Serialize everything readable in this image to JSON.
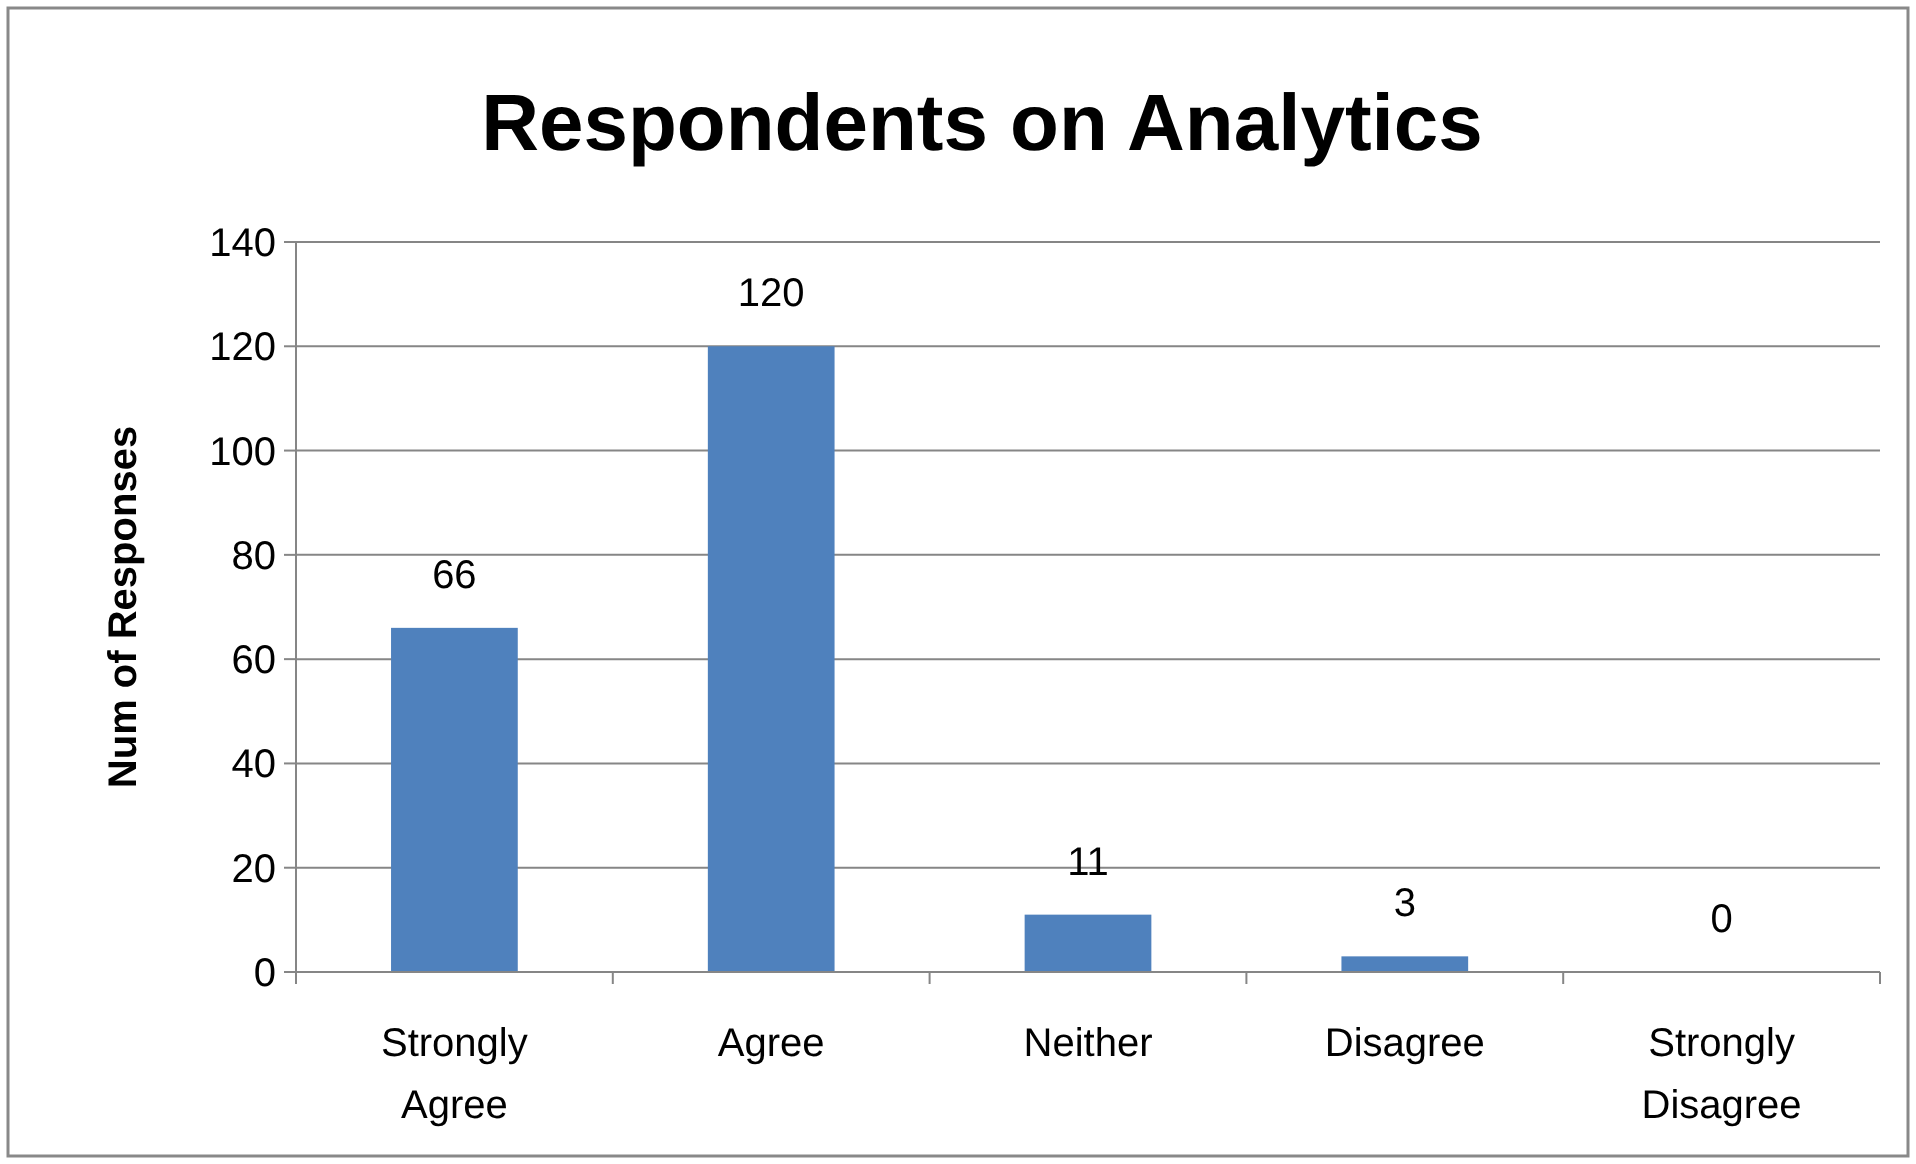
{
  "chart_data": {
    "type": "bar",
    "title": "Respondents on Analytics",
    "ylabel": "Num of Responses",
    "categories": [
      "Strongly Agree",
      "Agree",
      "Neither",
      "Disagree",
      "Strongly Disagree"
    ],
    "values": [
      66,
      120,
      11,
      3,
      0
    ],
    "color": "#4f81bd",
    "ylim": [
      0,
      140
    ],
    "yticks": [
      0,
      20,
      40,
      60,
      80,
      100,
      120,
      140
    ],
    "grid": "y",
    "data_labels": true
  }
}
